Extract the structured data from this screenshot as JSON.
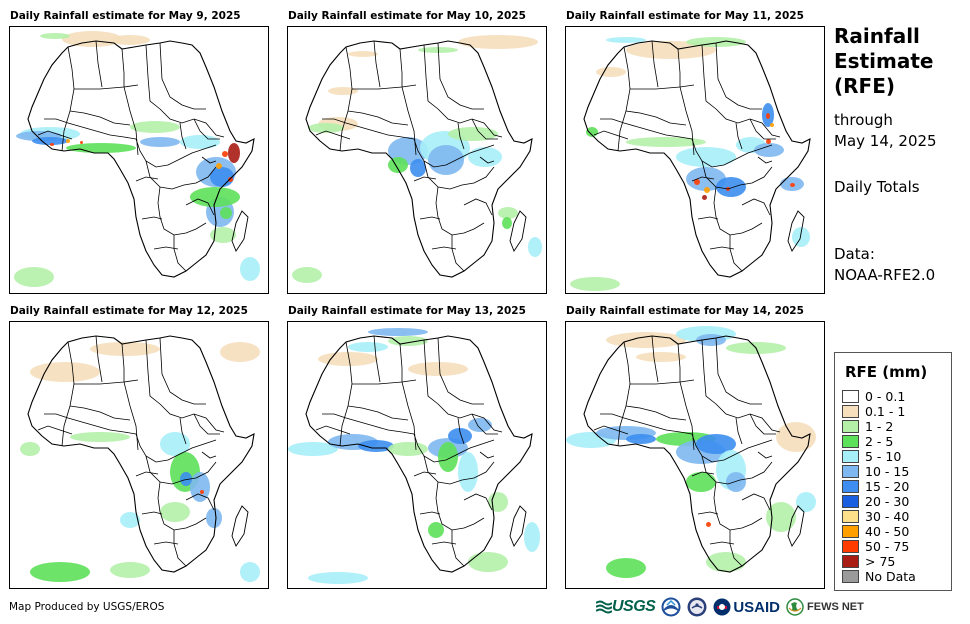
{
  "panels": [
    {
      "title": "Daily Rainfall estimate for May 9, 2025"
    },
    {
      "title": "Daily Rainfall estimate for May 10, 2025"
    },
    {
      "title": "Daily Rainfall estimate for May 11, 2025"
    },
    {
      "title": "Daily Rainfall estimate for May 12, 2025"
    },
    {
      "title": "Daily Rainfall estimate for May 13, 2025"
    },
    {
      "title": "Daily Rainfall estimate for May 14, 2025"
    }
  ],
  "side": {
    "title_line1": "Rainfall",
    "title_line2": "Estimate",
    "title_line3": "(RFE)",
    "through": "through",
    "date": "May 14, 2025",
    "totals": "Daily Totals",
    "data_label": "Data:",
    "data_source": "NOAA-RFE2.0"
  },
  "legend": {
    "title": "RFE (mm)",
    "items": [
      {
        "label": "0 - 0.1",
        "color": "#ffffff"
      },
      {
        "label": "0.1 - 1",
        "color": "#f5dfbd"
      },
      {
        "label": "1 - 2",
        "color": "#b4f0a8"
      },
      {
        "label": "2 - 5",
        "color": "#5de05a"
      },
      {
        "label": "5 - 10",
        "color": "#a6eef8"
      },
      {
        "label": "10 - 15",
        "color": "#7fb8f0"
      },
      {
        "label": "15 - 20",
        "color": "#3d8ef0"
      },
      {
        "label": "20 - 30",
        "color": "#1a5fe0"
      },
      {
        "label": "30 - 40",
        "color": "#ffe08a"
      },
      {
        "label": "40 - 50",
        "color": "#ff9f00"
      },
      {
        "label": "50 - 75",
        "color": "#ff3c00"
      },
      {
        "label": "> 75",
        "color": "#a81c14"
      },
      {
        "label": "No Data",
        "color": "#9a9a9a"
      }
    ]
  },
  "footer": {
    "credit": "Map Produced by USGS/EROS",
    "logo_usgs": "USGS",
    "logo_usaid": "USAID",
    "logo_fews": "FEWS NET"
  }
}
